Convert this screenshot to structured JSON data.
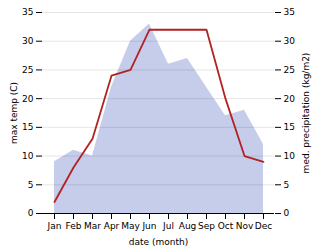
{
  "chart_data": {
    "type": "line",
    "categories": [
      "Jan",
      "Feb",
      "Mar",
      "Apr",
      "May",
      "Jun",
      "Jul",
      "Aug",
      "Sep",
      "Oct",
      "Nov",
      "Dec"
    ],
    "xlabel": "date (month)",
    "ylabel": "max temp (C)",
    "y2label": "med. precipitation (kg/m2)",
    "ylim": [
      0,
      35
    ],
    "yticks": [
      0,
      5,
      10,
      15,
      20,
      25,
      30,
      35
    ],
    "y2lim": [
      0,
      35
    ],
    "y2ticks": [
      0,
      5,
      10,
      15,
      20,
      25,
      30,
      35
    ],
    "grid": true,
    "series": [
      {
        "type": "area",
        "axis": "y2",
        "color": "#bbc4e8",
        "values": [
          9,
          11,
          10,
          22,
          30,
          33,
          26,
          27,
          22,
          17,
          18,
          12
        ]
      },
      {
        "type": "line",
        "color": "#b22222",
        "values": [
          2,
          8,
          13,
          24,
          25,
          32,
          32,
          32,
          32,
          20,
          10,
          9
        ]
      }
    ]
  }
}
